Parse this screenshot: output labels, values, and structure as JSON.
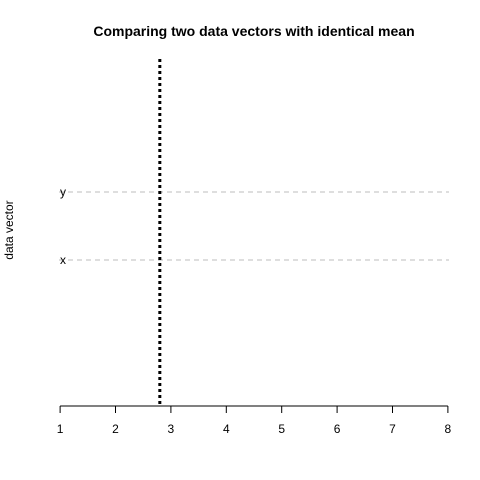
{
  "chart_data": {
    "type": "scatter",
    "title": "Comparing two data vectors with identical mean",
    "xlabel": "",
    "ylabel": "data vector",
    "xlim": [
      0.98,
      8.02
    ],
    "x_ticks": [
      1,
      2,
      3,
      4,
      5,
      6,
      7,
      8
    ],
    "categories": [
      "x",
      "y"
    ],
    "series": [
      {
        "name": "x",
        "values": []
      },
      {
        "name": "y",
        "values": []
      }
    ],
    "mean_line": {
      "x": 2.8,
      "style": "dotted"
    },
    "category_guides": "dashed",
    "colors": {
      "guide": "#bebebe",
      "mean_line": "#000000",
      "axis": "#000000",
      "text": "#000000"
    },
    "grid": false,
    "legend": "none"
  }
}
